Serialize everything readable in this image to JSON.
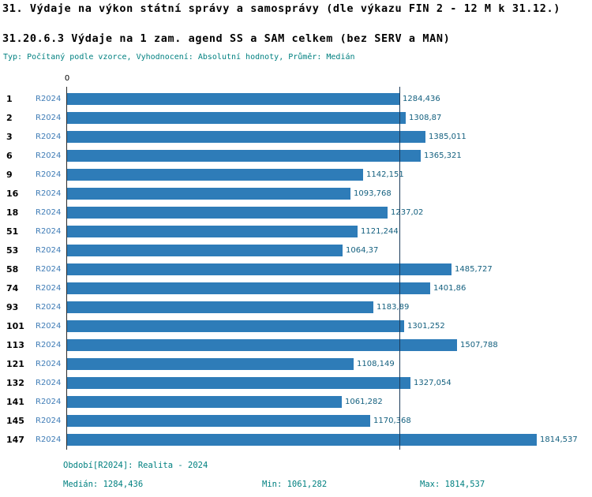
{
  "title": "31. Výdaje na výkon státní správy a samosprávy (dle výkazu FIN 2 - 12 M k 31.12.)",
  "subtitle": "31.20.6.3 Výdaje na 1 zam. agend SS a SAM celkem (bez SERV a MAN)",
  "type_line": "Typ: Počítaný podle vzorce, Vyhodnocení: Absolutní hodnoty, Průměr: Medián",
  "axis": {
    "zero_label": "0"
  },
  "chart_data": {
    "type": "bar",
    "orientation": "horizontal",
    "title": "31.20.6.3 Výdaje na 1 zam. agend SS a SAM celkem (bez SERV a MAN)",
    "series_label": "R2024",
    "categories": [
      "1",
      "2",
      "3",
      "6",
      "9",
      "16",
      "18",
      "51",
      "53",
      "58",
      "74",
      "93",
      "101",
      "113",
      "121",
      "132",
      "141",
      "145",
      "147"
    ],
    "values": [
      1284.436,
      1308.87,
      1385.011,
      1365.321,
      1142.151,
      1093.768,
      1237.02,
      1121.244,
      1064.37,
      1485.727,
      1401.86,
      1183.89,
      1301.252,
      1507.788,
      1108.149,
      1327.054,
      1061.282,
      1170.368,
      1814.537
    ],
    "value_labels": [
      "1284,436",
      "1308,87",
      "1385,011",
      "1365,321",
      "1142,151",
      "1093,768",
      "1237,02",
      "1121,244",
      "1064,37",
      "1485,727",
      "1401,86",
      "1183,89",
      "1301,252",
      "1507,788",
      "1108,149",
      "1327,054",
      "1061,282",
      "1170,368",
      "1814,537"
    ],
    "xlim": [
      0,
      1814.537
    ],
    "median_value": 1284.436,
    "grid": false,
    "legend_position": "none"
  },
  "footer": {
    "period": "Období[R2024]: Realita - 2024",
    "median": "Medián: 1284,436",
    "min": "Min: 1061,282",
    "max": "Max: 1814,537"
  },
  "colors": {
    "bar": "#2e7cb8",
    "median_line": "#1b3a5a",
    "teal_text": "#008080",
    "series_label": "#3f7cb6",
    "value_label": "#14607f"
  }
}
